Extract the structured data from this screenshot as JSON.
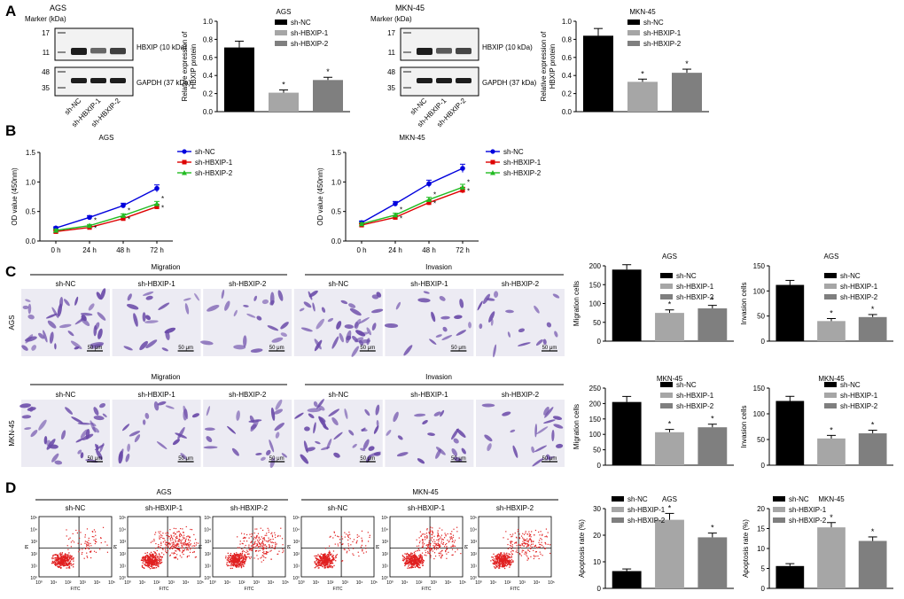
{
  "panel_letters": [
    "A",
    "B",
    "C",
    "D"
  ],
  "colors": {
    "black": "#000000",
    "gray1": "#a6a6a6",
    "gray2": "#7f7f7f",
    "blue": "#0000dd",
    "red": "#dd0000",
    "green": "#22bb22",
    "stain": "#6a4aa8",
    "dot": "#e02020"
  },
  "blots": [
    {
      "title": "AGS",
      "marker_label": "Marker (kDa)",
      "markers_top": [
        "17",
        "11"
      ],
      "markers_bottom": [
        "48",
        "35"
      ],
      "band_top": "HBXIP (10 kDa)",
      "band_bottom": "GAPDH (37 kDa)",
      "lanes": [
        "sh-NC",
        "sh-HBXIP-1",
        "sh-HBXIP-2"
      ],
      "top_intensity": [
        1.0,
        0.45,
        0.75
      ],
      "bottom_intensity": [
        1.0,
        1.0,
        1.0
      ]
    },
    {
      "title": "MKN-45",
      "marker_label": "Marker (kDa)",
      "markers_top": [
        "17",
        "11"
      ],
      "markers_bottom": [
        "48",
        "35"
      ],
      "band_top": "HBXIP (10 kDa)",
      "band_bottom": "GAPDH (37 kDa)",
      "lanes": [
        "sh-NC",
        "sh-HBXIP-1",
        "sh-HBXIP-2"
      ],
      "top_intensity": [
        1.0,
        0.55,
        0.7
      ],
      "bottom_intensity": [
        1.0,
        1.0,
        1.0
      ]
    }
  ],
  "legend_bar": [
    "sh-NC",
    "sh-HBXIP-1",
    "sh-HBXIP-2"
  ],
  "flow": {
    "groups": [
      {
        "title": "AGS",
        "cols": [
          "sh-NC",
          "sh-HBXIP-1",
          "sh-HBXIP-2"
        ]
      },
      {
        "title": "MKN-45",
        "cols": [
          "sh-NC",
          "sh-HBXIP-1",
          "sh-HBXIP-2"
        ]
      }
    ],
    "xlabel": "FITC",
    "ylabel": "PI",
    "xticks": [
      "10⁰",
      "10¹",
      "10²",
      "10³",
      "10⁴",
      "10⁵"
    ],
    "yticks": [
      "10⁰",
      "10¹",
      "10²",
      "10³",
      "10⁴",
      "10⁵"
    ],
    "spread": [
      0.3,
      1.0,
      0.8,
      0.3,
      0.85,
      0.7
    ]
  },
  "transwell": {
    "row_labels": [
      "AGS",
      "MKN-45"
    ],
    "group_titles": [
      "Migration",
      "Invasion"
    ],
    "cols": [
      "sh-NC",
      "sh-HBXIP-1",
      "sh-HBXIP-2"
    ],
    "scalebar": "50 μm",
    "density": [
      [
        1.0,
        0.5,
        0.55,
        1.0,
        0.45,
        0.5
      ],
      [
        1.0,
        0.55,
        0.6,
        1.0,
        0.5,
        0.55
      ]
    ]
  },
  "chart_data": [
    {
      "type": "bar",
      "title": "AGS",
      "categories": [
        "sh-NC",
        "sh-HBXIP-1",
        "sh-HBXIP-2"
      ],
      "values": [
        0.71,
        0.21,
        0.35
      ],
      "errors": [
        0.07,
        0.03,
        0.03
      ],
      "sig": [
        "",
        "*",
        "*"
      ],
      "ylabel": "Relative expression of HBXIP protein",
      "ylim": [
        0,
        1.0
      ],
      "yticks": [
        "0.0",
        "0.2",
        "0.4",
        "0.6",
        "0.8",
        "1.0"
      ],
      "tickvals": [
        0,
        0.2,
        0.4,
        0.6,
        0.8,
        1.0
      ]
    },
    {
      "type": "bar",
      "title": "MKN-45",
      "categories": [
        "sh-NC",
        "sh-HBXIP-1",
        "sh-HBXIP-2"
      ],
      "values": [
        0.84,
        0.33,
        0.43
      ],
      "errors": [
        0.08,
        0.03,
        0.04
      ],
      "sig": [
        "",
        "*",
        "*"
      ],
      "ylabel": "Relative expression of HBXIP protein",
      "ylim": [
        0,
        1.0
      ],
      "yticks": [
        "0.0",
        "0.2",
        "0.4",
        "0.6",
        "0.8",
        "1.0"
      ],
      "tickvals": [
        0,
        0.2,
        0.4,
        0.6,
        0.8,
        1.0
      ]
    },
    {
      "type": "line",
      "title": "AGS",
      "x": [
        "0 h",
        "24 h",
        "48 h",
        "72 h"
      ],
      "ylabel": "OD value (450nm)",
      "ylim": [
        0,
        1.5
      ],
      "yticks": [
        "0.0",
        "0.5",
        "1.0",
        "1.5"
      ],
      "tickvals": [
        0,
        0.5,
        1.0,
        1.5
      ],
      "series": [
        {
          "name": "sh-NC",
          "values": [
            0.22,
            0.4,
            0.6,
            0.89
          ],
          "errors": [
            0.02,
            0.03,
            0.04,
            0.06
          ]
        },
        {
          "name": "sh-HBXIP-1",
          "values": [
            0.16,
            0.23,
            0.38,
            0.58
          ],
          "errors": [
            0.02,
            0.02,
            0.03,
            0.04
          ]
        },
        {
          "name": "sh-HBXIP-2",
          "values": [
            0.18,
            0.26,
            0.43,
            0.63
          ],
          "errors": [
            0.02,
            0.02,
            0.03,
            0.04
          ]
        }
      ],
      "sig": [
        "",
        "*",
        "*",
        "*"
      ]
    },
    {
      "type": "line",
      "title": "MKN-45",
      "x": [
        "0 h",
        "24 h",
        "48 h",
        "72 h"
      ],
      "ylabel": "OD value (450nm)",
      "ylim": [
        0,
        1.5
      ],
      "yticks": [
        "0.0",
        "0.5",
        "1.0",
        "1.5"
      ],
      "tickvals": [
        0,
        0.5,
        1.0,
        1.5
      ],
      "series": [
        {
          "name": "sh-NC",
          "values": [
            0.31,
            0.63,
            0.97,
            1.23
          ],
          "errors": [
            0.03,
            0.04,
            0.06,
            0.07
          ]
        },
        {
          "name": "sh-HBXIP-1",
          "values": [
            0.27,
            0.4,
            0.65,
            0.86
          ],
          "errors": [
            0.02,
            0.03,
            0.04,
            0.05
          ]
        },
        {
          "name": "sh-HBXIP-2",
          "values": [
            0.29,
            0.44,
            0.7,
            0.91
          ],
          "errors": [
            0.02,
            0.03,
            0.04,
            0.05
          ]
        }
      ],
      "sig": [
        "",
        "*",
        "*",
        "*"
      ]
    },
    {
      "type": "bar",
      "title": "AGS",
      "categories": [
        "sh-NC",
        "sh-HBXIP-1",
        "sh-HBXIP-2"
      ],
      "values": [
        190,
        75,
        87
      ],
      "errors": [
        13,
        8,
        8
      ],
      "sig": [
        "",
        "*",
        "*"
      ],
      "ylabel": "Migration cells",
      "ylim": [
        0,
        200
      ],
      "yticks": [
        "0",
        "50",
        "100",
        "150",
        "200"
      ],
      "tickvals": [
        0,
        50,
        100,
        150,
        200
      ]
    },
    {
      "type": "bar",
      "title": "AGS",
      "categories": [
        "sh-NC",
        "sh-HBXIP-1",
        "sh-HBXIP-2"
      ],
      "values": [
        112,
        40,
        48
      ],
      "errors": [
        9,
        5,
        5
      ],
      "sig": [
        "",
        "*",
        "*"
      ],
      "ylabel": "Invasion cells",
      "ylim": [
        0,
        150
      ],
      "yticks": [
        "0",
        "50",
        "100",
        "150"
      ],
      "tickvals": [
        0,
        50,
        100,
        150
      ]
    },
    {
      "type": "bar",
      "title": "MKN-45",
      "categories": [
        "sh-NC",
        "sh-HBXIP-1",
        "sh-HBXIP-2"
      ],
      "values": [
        205,
        107,
        123
      ],
      "errors": [
        18,
        9,
        10
      ],
      "sig": [
        "",
        "*",
        "*"
      ],
      "ylabel": "Migration cells",
      "ylim": [
        0,
        250
      ],
      "yticks": [
        "0",
        "50",
        "100",
        "150",
        "200",
        "250"
      ],
      "tickvals": [
        0,
        50,
        100,
        150,
        200,
        250
      ]
    },
    {
      "type": "bar",
      "title": "MKN-45",
      "categories": [
        "sh-NC",
        "sh-HBXIP-1",
        "sh-HBXIP-2"
      ],
      "values": [
        125,
        52,
        62
      ],
      "errors": [
        9,
        6,
        6
      ],
      "sig": [
        "",
        "*",
        "*"
      ],
      "ylabel": "Invasion cells",
      "ylim": [
        0,
        150
      ],
      "yticks": [
        "0",
        "50",
        "100",
        "150"
      ],
      "tickvals": [
        0,
        50,
        100,
        150
      ]
    },
    {
      "type": "bar",
      "title": "AGS",
      "categories": [
        "sh-NC",
        "sh-HBXIP-1",
        "sh-HBXIP-2"
      ],
      "values": [
        6.5,
        25.8,
        19.2
      ],
      "errors": [
        0.8,
        2.4,
        1.6
      ],
      "sig": [
        "",
        "*",
        "*"
      ],
      "ylabel": "Apoptosis rate (%)",
      "ylim": [
        0,
        30
      ],
      "yticks": [
        "0",
        "10",
        "20",
        "30"
      ],
      "tickvals": [
        0,
        10,
        20,
        30
      ]
    },
    {
      "type": "bar",
      "title": "MKN-45",
      "categories": [
        "sh-NC",
        "sh-HBXIP-1",
        "sh-HBXIP-2"
      ],
      "values": [
        5.6,
        15.3,
        11.9
      ],
      "errors": [
        0.6,
        1.2,
        1.0
      ],
      "sig": [
        "",
        "*",
        "*"
      ],
      "ylabel": "Apoptosis rate (%)",
      "ylim": [
        0,
        20
      ],
      "yticks": [
        "0",
        "5",
        "10",
        "15",
        "20"
      ],
      "tickvals": [
        0,
        5,
        10,
        15,
        20
      ]
    }
  ]
}
